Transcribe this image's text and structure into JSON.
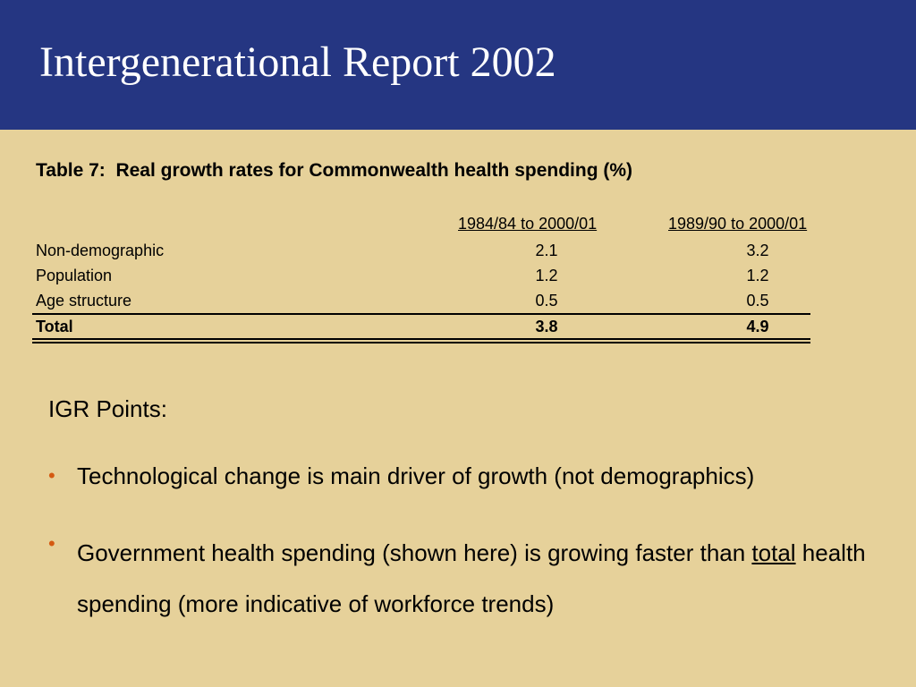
{
  "slide": {
    "title": "Intergenerational Report 2002",
    "colors": {
      "header_background": "#253682",
      "body_background": "#e6d19a",
      "bullet": "#d45a12"
    }
  },
  "table": {
    "caption": "Table 7:  Real growth rates for Commonwealth health spending (%)",
    "columns": [
      "1984/84 to 2000/01",
      "1989/90 to 2000/01"
    ],
    "rows": [
      {
        "label": "Non-demographic",
        "values": [
          "2.1",
          "3.2"
        ]
      },
      {
        "label": "Population",
        "values": [
          "1.2",
          "1.2"
        ]
      },
      {
        "label": "Age structure",
        "values": [
          "0.5",
          "0.5"
        ]
      }
    ],
    "total": {
      "label": "Total",
      "values": [
        "3.8",
        "4.9"
      ]
    }
  },
  "points": {
    "heading": "IGR Points:",
    "bullets": [
      {
        "text": "Technological change is main driver of growth (not demographics)"
      },
      {
        "text_before": "Government health spending (shown here) is growing faster than ",
        "underlined": "total",
        "text_after": " health spending (more indicative of workforce trends)"
      }
    ]
  }
}
